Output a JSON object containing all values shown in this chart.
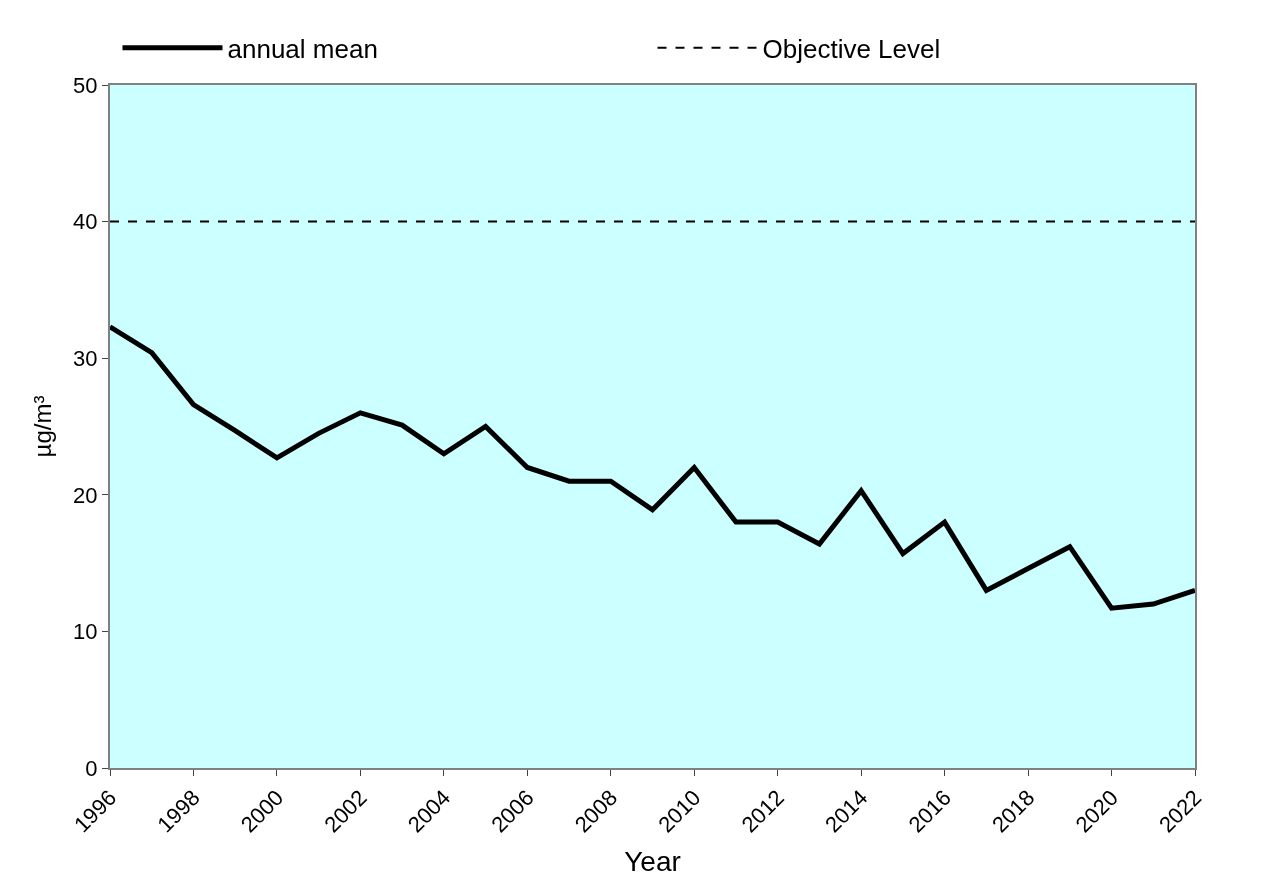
{
  "chart_data": {
    "type": "line",
    "xlabel": "Year",
    "ylabel": "µg/m³",
    "x": [
      1996,
      1997,
      1998,
      1999,
      2000,
      2001,
      2002,
      2003,
      2004,
      2005,
      2006,
      2007,
      2008,
      2009,
      2010,
      2011,
      2012,
      2013,
      2014,
      2015,
      2016,
      2017,
      2018,
      2019,
      2020,
      2021,
      2022
    ],
    "series": [
      {
        "name": "annual mean",
        "color": "#000000",
        "values": [
          32.3,
          30.4,
          26.6,
          24.7,
          22.7,
          24.5,
          26.0,
          25.1,
          23.0,
          25.0,
          22.0,
          21.0,
          21.0,
          18.9,
          22.0,
          18.0,
          18.0,
          16.4,
          20.3,
          15.7,
          18.0,
          13.0,
          14.6,
          16.2,
          11.7,
          12.0,
          13.0
        ]
      }
    ],
    "ref_lines": [
      {
        "axis": "y",
        "value": 40,
        "label": "Objective Level",
        "color": "#000000",
        "line_style": "dashed"
      }
    ],
    "xlim": [
      1996,
      2022
    ],
    "xticks": [
      1996,
      1998,
      2000,
      2002,
      2004,
      2006,
      2008,
      2010,
      2012,
      2014,
      2016,
      2018,
      2020,
      2022
    ],
    "ylim": [
      0,
      50
    ],
    "yticks": [
      0,
      10,
      20,
      30,
      40,
      50
    ],
    "grid": false,
    "legend": "top",
    "marker": "none",
    "line_style": "solid"
  }
}
